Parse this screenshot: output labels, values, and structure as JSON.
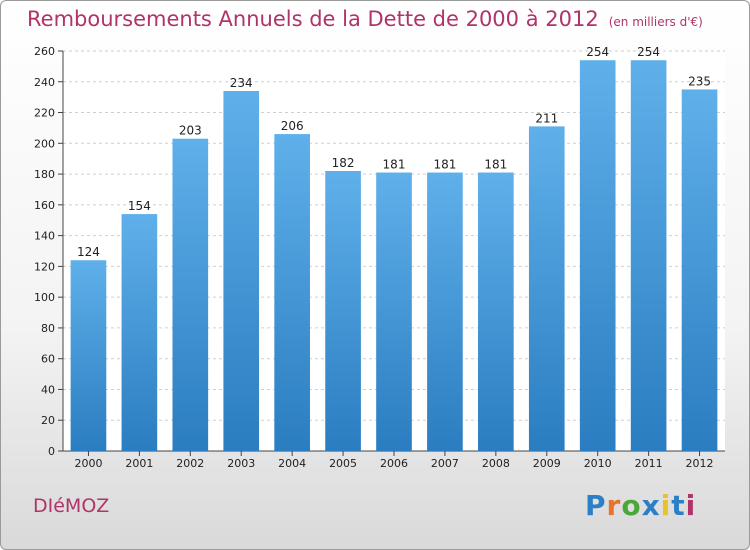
{
  "title": "Remboursements Annuels de la Dette de 2000 à 2012",
  "subtitle": "(en milliers d'€)",
  "commune": "DIéMOZ",
  "logo": {
    "letters": [
      "P",
      "r",
      "o",
      "x",
      "i",
      "t",
      "i"
    ],
    "colors": [
      "#2a7fc6",
      "#e8732a",
      "#4aa83a",
      "#2a7fc6",
      "#e8c22a",
      "#2a7fc6",
      "#b0336a"
    ]
  },
  "colors": {
    "bar": "#3b97dc",
    "grid": "#cfcfcf",
    "title": "#b0336a"
  },
  "chart_data": {
    "type": "bar",
    "title": "Remboursements Annuels de la Dette de 2000 à 2012",
    "subtitle": "(en milliers d'€)",
    "xlabel": "",
    "ylabel": "",
    "categories": [
      "2000",
      "2001",
      "2002",
      "2003",
      "2004",
      "2005",
      "2006",
      "2007",
      "2008",
      "2009",
      "2010",
      "2011",
      "2012"
    ],
    "values": [
      124,
      154,
      203,
      234,
      206,
      182,
      181,
      181,
      181,
      211,
      254,
      254,
      235
    ],
    "ylim": [
      0,
      260
    ],
    "yticks": [
      0,
      20,
      40,
      60,
      80,
      100,
      120,
      140,
      160,
      180,
      200,
      220,
      240,
      260
    ],
    "grid": true,
    "data_labels": true
  }
}
